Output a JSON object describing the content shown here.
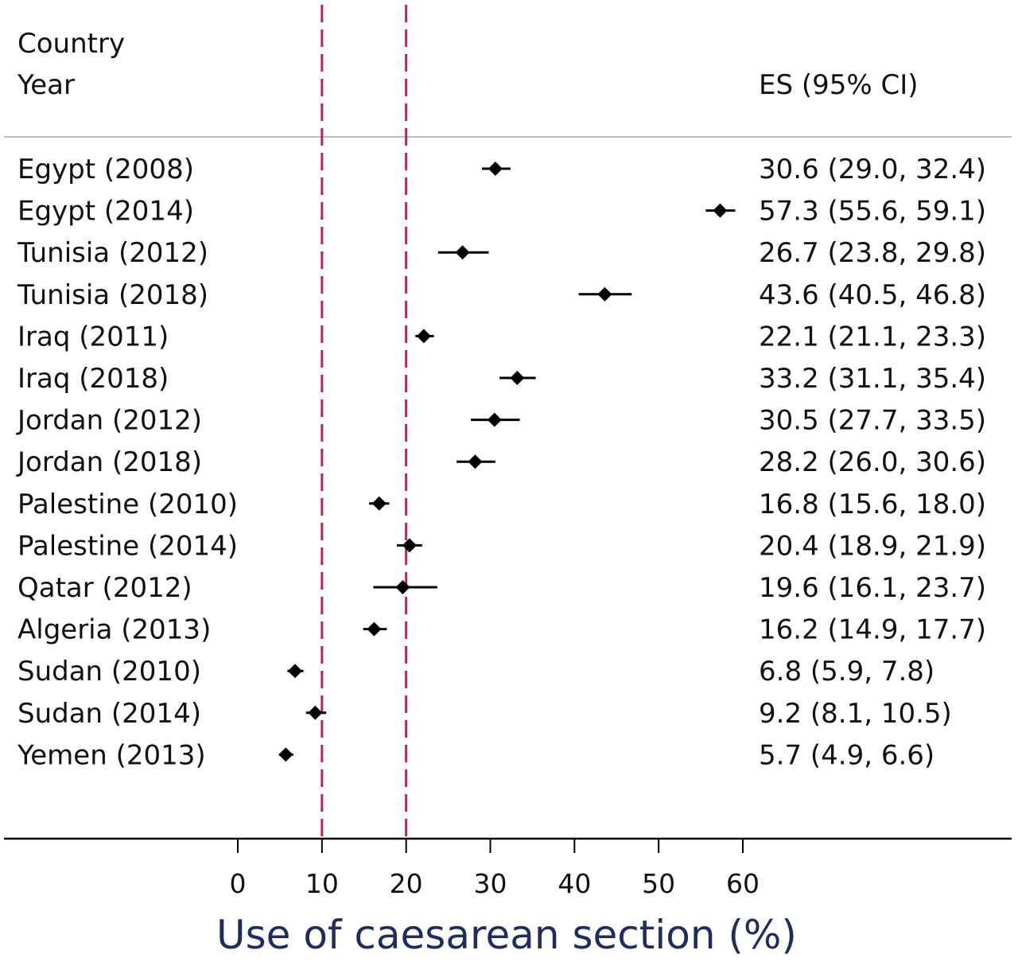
{
  "header": {
    "col1_line1": "Country",
    "col1_line2": "Year",
    "col2": "ES (95% CI)"
  },
  "colors": {
    "marker": "#000000",
    "reference_line": "#c0224f",
    "axis_title": "#1f2d5c",
    "separator": "#bdbdbd"
  },
  "chart_data": {
    "type": "forest",
    "xlabel": "Use of caesarean section (%)",
    "xlim": [
      0,
      60
    ],
    "xticks": [
      0,
      10,
      20,
      30,
      40,
      50,
      60
    ],
    "reference_lines": [
      10,
      20
    ],
    "reference_line_style": "dashed",
    "grid": false,
    "rows": [
      {
        "label": "Egypt (2008)",
        "es": 30.6,
        "lo": 29.0,
        "hi": 32.4,
        "text": "30.6 (29.0, 32.4)"
      },
      {
        "label": "Egypt (2014)",
        "es": 57.3,
        "lo": 55.6,
        "hi": 59.1,
        "text": "57.3 (55.6, 59.1)"
      },
      {
        "label": "Tunisia (2012)",
        "es": 26.7,
        "lo": 23.8,
        "hi": 29.8,
        "text": "26.7 (23.8, 29.8)"
      },
      {
        "label": "Tunisia (2018)",
        "es": 43.6,
        "lo": 40.5,
        "hi": 46.8,
        "text": "43.6 (40.5, 46.8)"
      },
      {
        "label": "Iraq (2011)",
        "es": 22.1,
        "lo": 21.1,
        "hi": 23.3,
        "text": "22.1 (21.1, 23.3)"
      },
      {
        "label": "Iraq (2018)",
        "es": 33.2,
        "lo": 31.1,
        "hi": 35.4,
        "text": "33.2 (31.1, 35.4)"
      },
      {
        "label": "Jordan (2012)",
        "es": 30.5,
        "lo": 27.7,
        "hi": 33.5,
        "text": "30.5 (27.7, 33.5)"
      },
      {
        "label": "Jordan (2018)",
        "es": 28.2,
        "lo": 26.0,
        "hi": 30.6,
        "text": "28.2 (26.0, 30.6)"
      },
      {
        "label": "Palestine (2010)",
        "es": 16.8,
        "lo": 15.6,
        "hi": 18.0,
        "text": "16.8 (15.6, 18.0)"
      },
      {
        "label": "Palestine (2014)",
        "es": 20.4,
        "lo": 18.9,
        "hi": 21.9,
        "text": "20.4 (18.9, 21.9)"
      },
      {
        "label": "Qatar (2012)",
        "es": 19.6,
        "lo": 16.1,
        "hi": 23.7,
        "text": "19.6 (16.1, 23.7)"
      },
      {
        "label": "Algeria (2013)",
        "es": 16.2,
        "lo": 14.9,
        "hi": 17.7,
        "text": "16.2 (14.9, 17.7)"
      },
      {
        "label": "Sudan (2010)",
        "es": 6.8,
        "lo": 5.9,
        "hi": 7.8,
        "text": "6.8 (5.9, 7.8)"
      },
      {
        "label": "Sudan (2014)",
        "es": 9.2,
        "lo": 8.1,
        "hi": 10.5,
        "text": "9.2 (8.1, 10.5)"
      },
      {
        "label": "Yemen (2013)",
        "es": 5.7,
        "lo": 4.9,
        "hi": 6.6,
        "text": "5.7 (4.9, 6.6)"
      }
    ]
  }
}
